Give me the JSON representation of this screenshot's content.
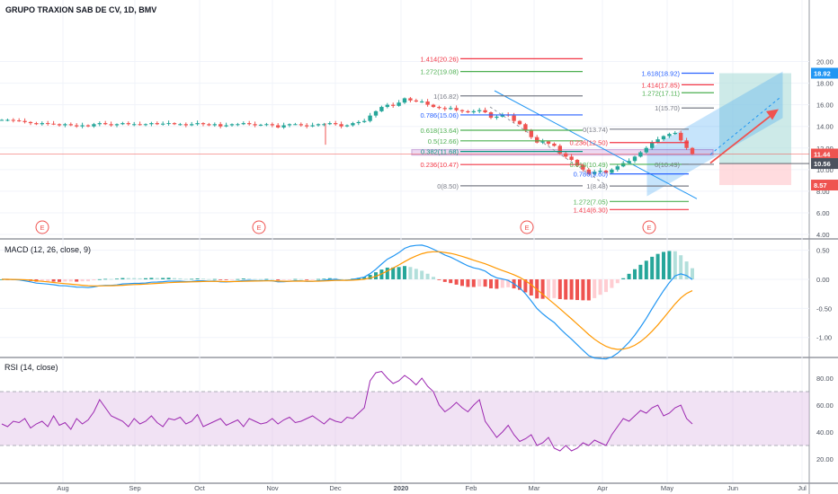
{
  "header": {
    "symbol_title": "GRUPO TRAXION SAB DE CV, 1D, BMV"
  },
  "colors": {
    "up": "#26a69a",
    "down": "#ef5350",
    "macd": "#2196f3",
    "signal": "#ff9800",
    "rsi": "#9c27b0",
    "rsi_band": "#e1bee7",
    "fib_gray": "#787b86",
    "fib_green": "#4caf50",
    "fib_red": "#f23645",
    "fib_teal": "#089981",
    "fib_blue": "#2962ff",
    "projection_blue": "#2196f3",
    "target_zone": "#b2dfdb",
    "stop_zone": "#ffcdd2",
    "current_price_line": "#ef5350"
  },
  "chart_data": [
    {
      "type": "candlestick",
      "name": "price",
      "y_axis_ticks": [
        "20.00",
        "18.00",
        "16.00",
        "14.00",
        "12.00",
        "10.00",
        "8.00",
        "6.00",
        "4.00"
      ],
      "ylim": [
        4,
        21
      ],
      "x_axis_labels": [
        "Aug",
        "Sep",
        "Oct",
        "Nov",
        "Dec",
        "2020",
        "Feb",
        "Mar",
        "Apr",
        "May",
        "Jun",
        "Jul"
      ],
      "price_badges": [
        {
          "text": "18.92",
          "color": "#2196f3"
        },
        {
          "text": "11.44",
          "color": "#ef5350"
        },
        {
          "text": "10.56",
          "color": "#4c525e"
        },
        {
          "text": "8.57",
          "color": "#ef5350"
        }
      ],
      "fib_retracement_1": [
        {
          "label": "1.414(20.26)",
          "value": 20.26,
          "color": "#f23645"
        },
        {
          "label": "1.272(19.08)",
          "value": 19.08,
          "color": "#4caf50"
        },
        {
          "label": "1(16.82)",
          "value": 16.82,
          "color": "#787b86"
        },
        {
          "label": "0.786(15.06)",
          "value": 15.06,
          "color": "#2962ff"
        },
        {
          "label": "0.618(13.64)",
          "value": 13.64,
          "color": "#4caf50"
        },
        {
          "label": "0.5(12.66)",
          "value": 12.66,
          "color": "#4caf50"
        },
        {
          "label": "0.382(11.68)",
          "value": 11.68,
          "color": "#089981"
        },
        {
          "label": "0.236(10.47)",
          "value": 10.47,
          "color": "#f23645"
        },
        {
          "label": "0(8.50)",
          "value": 8.5,
          "color": "#787b86"
        }
      ],
      "fib_retracement_2": [
        {
          "label": "0(13.74)",
          "value": 13.74,
          "color": "#787b86"
        },
        {
          "label": "0.236(12.50)",
          "value": 12.5,
          "color": "#f23645"
        },
        {
          "label": "0.618(10.49)",
          "value": 10.49,
          "color": "#4caf50"
        },
        {
          "label": "0.786(9.60)",
          "value": 9.6,
          "color": "#2962ff"
        },
        {
          "label": "1(8.48)",
          "value": 8.48,
          "color": "#787b86"
        },
        {
          "label": "1.272(7.05)",
          "value": 7.05,
          "color": "#4caf50"
        },
        {
          "label": "1.414(6.30)",
          "value": 6.3,
          "color": "#f23645"
        }
      ],
      "fib_extension": [
        {
          "label": "1.618(18.92)",
          "value": 18.92,
          "color": "#2962ff"
        },
        {
          "label": "1.414(17.85)",
          "value": 17.85,
          "color": "#f23645"
        },
        {
          "label": "1.272(17.11)",
          "value": 17.11,
          "color": "#4caf50"
        },
        {
          "label": "1(15.70)",
          "value": 15.7,
          "color": "#787b86"
        },
        {
          "label": "0(10.49)",
          "value": 10.49,
          "color": "#787b86"
        }
      ],
      "events": [
        "E",
        "E",
        "E",
        "E"
      ],
      "current_price": 11.44,
      "target_price": 18.92,
      "stop_price": 8.57,
      "approx_close_series": [
        14.6,
        14.6,
        14.55,
        14.5,
        14.4,
        14.3,
        14.2,
        14.3,
        14.25,
        14.2,
        14.1,
        14.2,
        14.1,
        14.0,
        14.1,
        14.0,
        14.2,
        14.3,
        14.2,
        14.1,
        14.2,
        14.3,
        14.2,
        14.2,
        14.15,
        14.2,
        14.3,
        14.2,
        14.25,
        14.3,
        14.2,
        14.2,
        14.1,
        14.2,
        14.3,
        14.2,
        14.1,
        14.2,
        14.0,
        14.1,
        14.2,
        14.2,
        14.3,
        14.2,
        14.1,
        14.15,
        14.2,
        14.1,
        13.9,
        14.1,
        14.2,
        14.2,
        14.1,
        14.0,
        14.1,
        14.2,
        14.2,
        14.3,
        14.2,
        14.0,
        14.1,
        14.3,
        14.4,
        14.5,
        15.0,
        15.4,
        15.8,
        16.0,
        15.9,
        16.2,
        16.6,
        16.4,
        16.3,
        16.3,
        16.0,
        15.8,
        15.7,
        15.6,
        15.7,
        15.5,
        15.4,
        15.3,
        15.4,
        15.5,
        15.3,
        14.8,
        14.9,
        15.1,
        15.0,
        14.5,
        14.2,
        13.6,
        13.0,
        12.5,
        12.6,
        12.4,
        12.2,
        11.5,
        11.2,
        10.9,
        10.4,
        10.0,
        9.6,
        9.8,
        9.9,
        9.7,
        10.0,
        10.3,
        10.6,
        10.8,
        11.2,
        11.6,
        12.0,
        12.5,
        12.8,
        13.1,
        13.3,
        13.4,
        12.7,
        12.0,
        11.44
      ]
    },
    {
      "type": "line",
      "name": "MACD",
      "title": "MACD (12, 26, close, 9)",
      "y_axis_ticks": [
        "0.50",
        "0.00",
        "-0.50",
        "-1.00"
      ],
      "ylim": [
        -1.45,
        0.62
      ]
    },
    {
      "type": "line",
      "name": "RSI",
      "title": "RSI (14, close)",
      "y_axis_ticks": [
        "80.00",
        "60.00",
        "40.00",
        "20.00"
      ],
      "ylim": [
        17,
        90
      ],
      "bands": [
        30,
        70
      ],
      "approx_values": [
        46,
        44,
        48,
        47,
        50,
        43,
        46,
        48,
        44,
        52,
        45,
        47,
        42,
        50,
        46,
        49,
        55,
        64,
        58,
        52,
        50,
        48,
        44,
        50,
        46,
        48,
        52,
        47,
        44,
        50,
        49,
        51,
        46,
        48,
        53,
        44,
        46,
        48,
        50,
        45,
        47,
        49,
        44,
        50,
        48,
        46,
        47,
        50,
        46,
        49,
        51,
        47,
        48,
        50,
        52,
        49,
        46,
        50,
        48,
        47,
        51,
        50,
        54,
        58,
        78,
        84,
        85,
        80,
        76,
        78,
        82,
        79,
        75,
        80,
        74,
        70,
        60,
        55,
        58,
        62,
        58,
        55,
        60,
        64,
        48,
        42,
        36,
        40,
        45,
        38,
        33,
        35,
        38,
        30,
        32,
        36,
        28,
        26,
        30,
        26,
        28,
        32,
        30,
        34,
        32,
        30,
        38,
        44,
        50,
        48,
        52,
        56,
        54,
        58,
        60,
        52,
        54,
        58,
        60,
        50,
        46
      ]
    }
  ]
}
